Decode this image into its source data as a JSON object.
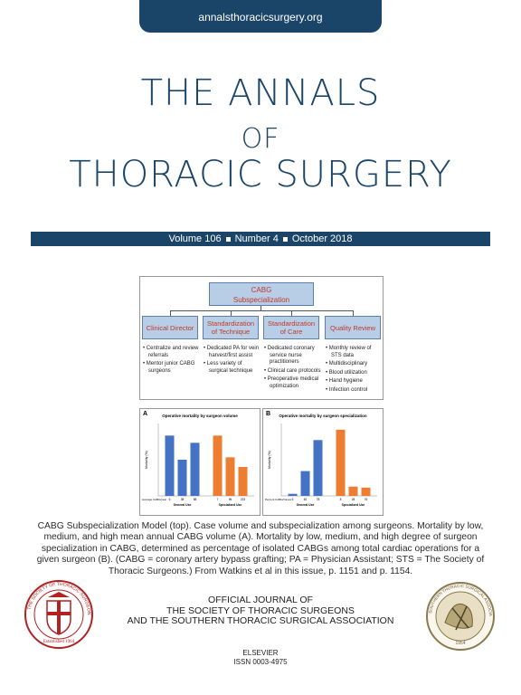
{
  "header": {
    "url": "annalsthoracicsurgery.org"
  },
  "masthead": {
    "line1": "THE ANNALS",
    "line2": "OF",
    "line3": "THORACIC SURGERY"
  },
  "issue": {
    "volume": "Volume 106",
    "number": "Number 4",
    "date": "October 2018"
  },
  "figure_top": {
    "root_line1": "CABG",
    "root_line2": "Subspecialization",
    "categories": [
      {
        "label": "Clinical Director",
        "items": [
          "Centralize and review referrals",
          "Mentor junior CABG surgeons"
        ]
      },
      {
        "label": "Standardization of Technique",
        "items": [
          "Dedicated PA for vein harvest/first assist",
          "Less variety of surgical technique"
        ]
      },
      {
        "label": "Standardization of Care",
        "items": [
          "Dedicated coronary service nurse practitioners",
          "Clinical care protocols",
          "Preoperative medical optimization"
        ]
      },
      {
        "label": "Quality Review",
        "items": [
          "Monthly review of STS data",
          "Multidisciplinary",
          "Blood utilization",
          "Hand hygiene",
          "Infection control"
        ]
      }
    ]
  },
  "chart_data": [
    {
      "type": "bar",
      "panel": "A",
      "title": "Operative mortality by surgeon volume",
      "ylabel": "Mortality (%)",
      "xlabel_groups": [
        "General Use",
        "Specialized Use"
      ],
      "x_row_label": "Average CABG/year",
      "ylim": [
        0,
        3.0
      ],
      "series": [
        {
          "name": "General Use",
          "color": "#4472c4",
          "categories": [
            "6",
            "38",
            "88"
          ],
          "values": [
            2.5,
            1.5,
            2.2
          ]
        },
        {
          "name": "Specialized Use",
          "color": "#ed7d31",
          "categories": [
            "7",
            "96",
            "223"
          ],
          "values": [
            2.5,
            1.6,
            1.2
          ]
        }
      ]
    },
    {
      "type": "bar",
      "panel": "B",
      "title": "Operative mortality by surgeon specialization",
      "ylabel": "Mortality (%)",
      "xlabel_groups": [
        "General Use",
        "Specialized Use"
      ],
      "x_row_label": "Percent CABG/Cases",
      "ylim": [
        0,
        3.5
      ],
      "series": [
        {
          "name": "General Use",
          "color": "#4472c4",
          "categories": [
            "6",
            "62",
            "78"
          ],
          "values": [
            0.1,
            1.2,
            2.7
          ]
        },
        {
          "name": "Specialized Use",
          "color": "#ed7d31",
          "categories": [
            "8",
            "28",
            "76"
          ],
          "values": [
            3.2,
            0.45,
            0.4
          ]
        }
      ]
    }
  ],
  "caption": "CABG Subspecialization Model (top). Case volume and subspecialization among surgeons. Mortality by low, medium, and high mean annual CABG volume (A). Mortality by low, medium, and high degree of surgeon specialization in CABG, determined as percentage of isolated CABGs among total cardiac operations for a given surgeon (B). (CABG = coronary artery bypass grafting; PA = Physician Assistant; STS = The Society of Thoracic Surgeons.) From Watkins et al in this issue, p. 1151 and p. 1154.",
  "journal": {
    "line1": "OFFICIAL JOURNAL OF",
    "line2": "THE SOCIETY OF THORACIC SURGEONS",
    "line3": "AND THE SOUTHERN THORACIC SURGICAL ASSOCIATION"
  },
  "publisher": {
    "name": "ELSEVIER",
    "issn": "ISSN 0003-4975"
  },
  "seals": {
    "left": {
      "text": "THE SOCIETY OF THORACIC SURGEONS",
      "established": "Established 1964",
      "color": "#b22222"
    },
    "right": {
      "text": "SOUTHERN THORACIC SURGICAL ASSOCIATION",
      "year": "1954",
      "color": "#8a7a50"
    }
  }
}
